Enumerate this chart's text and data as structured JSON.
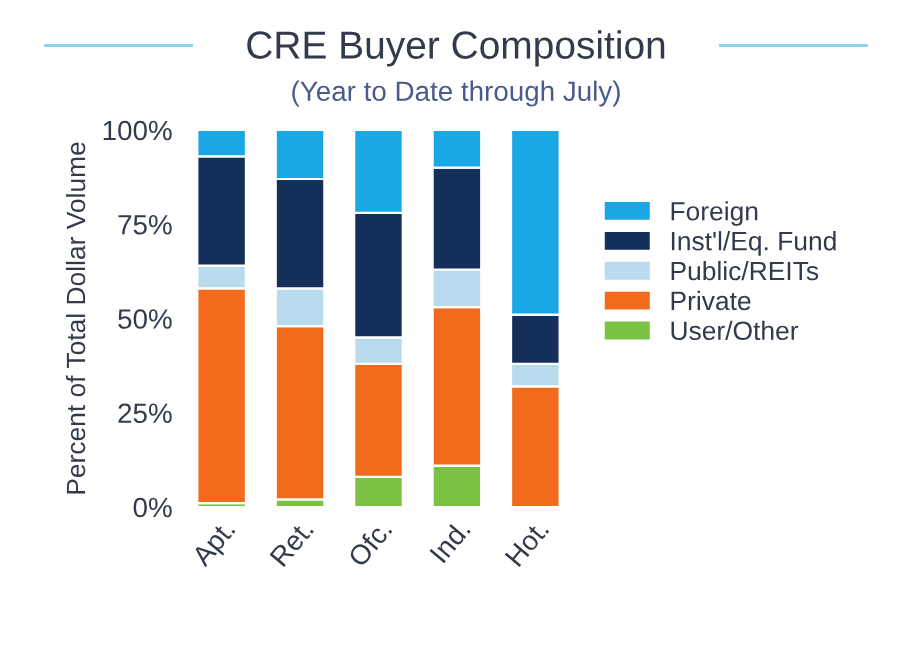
{
  "chart_data": {
    "type": "bar",
    "title": "CRE Buyer Composition",
    "subtitle": "(Year to Date through July)",
    "ylabel": "Percent of Total Dollar Volume",
    "categories": [
      "Apt.",
      "Ret.",
      "Ofc.",
      "Ind.",
      "Hot."
    ],
    "stacked": true,
    "series": [
      {
        "name": "User/Other",
        "color": "#7cc242",
        "values": [
          1,
          2,
          8,
          11,
          0
        ]
      },
      {
        "name": "Private",
        "color": "#f26b1d",
        "values": [
          57,
          46,
          30,
          42,
          32
        ]
      },
      {
        "name": "Public/REITs",
        "color": "#b8dcee",
        "values": [
          6,
          10,
          7,
          10,
          6
        ]
      },
      {
        "name": "Inst'l/Eq. Fund",
        "color": "#14305a",
        "values": [
          29,
          29,
          33,
          27,
          13
        ]
      },
      {
        "name": "Foreign",
        "color": "#1aa7e6",
        "values": [
          7,
          13,
          22,
          10,
          49
        ]
      }
    ],
    "ylim": [
      0,
      100
    ],
    "yticks": [
      {
        "value": 0,
        "label": "0%"
      },
      {
        "value": 25,
        "label": "25%"
      },
      {
        "value": 50,
        "label": "50%"
      },
      {
        "value": 75,
        "label": "75%"
      },
      {
        "value": 100,
        "label": "100%"
      }
    ],
    "grid": false,
    "legend": "right"
  }
}
